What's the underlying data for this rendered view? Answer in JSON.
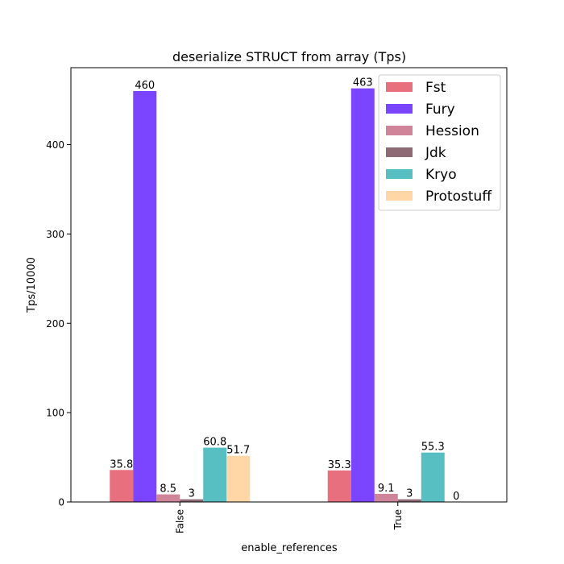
{
  "chart_data": {
    "type": "bar",
    "title": "deserialize STRUCT from array (Tps)",
    "xlabel": "enable_references",
    "ylabel": "Tps/10000",
    "categories": [
      "False",
      "True"
    ],
    "ylim": [
      0,
      486.15
    ],
    "yticks": [
      0,
      100,
      200,
      300,
      400
    ],
    "grid": false,
    "legend_position": "top-right",
    "series": [
      {
        "name": "Fst",
        "color": "#e8707e",
        "values": [
          35.8,
          35.3
        ],
        "labels": [
          "35.8",
          "35.3"
        ]
      },
      {
        "name": "Fury",
        "color": "#7b45ff",
        "values": [
          460,
          463
        ],
        "labels": [
          "460",
          "463"
        ]
      },
      {
        "name": "Hession",
        "color": "#d08499",
        "values": [
          8.5,
          9.1
        ],
        "labels": [
          "8.5",
          "9.1"
        ]
      },
      {
        "name": "Jdk",
        "color": "#8d6a74",
        "values": [
          3,
          3
        ],
        "labels": [
          "3",
          "3"
        ]
      },
      {
        "name": "Kryo",
        "color": "#57bec2",
        "values": [
          60.8,
          55.3
        ],
        "labels": [
          "60.8",
          "55.3"
        ]
      },
      {
        "name": "Protostuff",
        "color": "#ffd6a5",
        "values": [
          51.7,
          0
        ],
        "labels": [
          "51.7",
          "0"
        ]
      }
    ]
  }
}
